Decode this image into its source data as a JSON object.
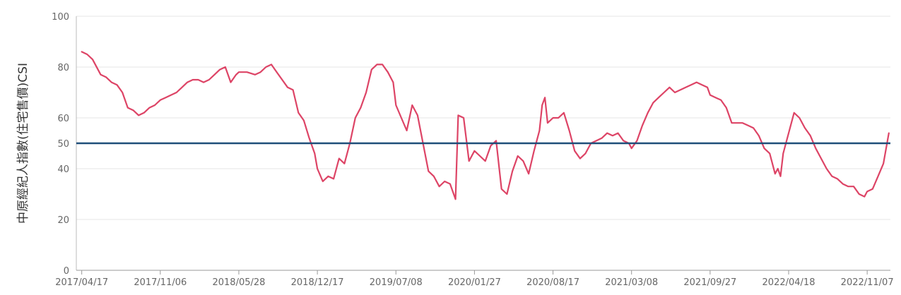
{
  "chart_data": {
    "type": "line",
    "ylabel": "中原經紀人指數(住宅售價)CSI",
    "xlabel": "",
    "ylim": [
      0,
      100
    ],
    "yticks": [
      0,
      20,
      40,
      50,
      60,
      80,
      100
    ],
    "xticks": [
      "2017/04/17",
      "2017/11/06",
      "2018/05/28",
      "2018/12/17",
      "2019/07/08",
      "2020/01/27",
      "2020/08/17",
      "2021/03/08",
      "2021/09/27",
      "2022/04/18",
      "2022/11/07"
    ],
    "reference_line": {
      "value": 50,
      "color": "#1f4e79"
    },
    "grid": true,
    "series": [
      {
        "color": "#dd4466",
        "points": [
          [
            "2017/04/17",
            86
          ],
          [
            "2017/05/01",
            85
          ],
          [
            "2017/05/15",
            83
          ],
          [
            "2017/06/05",
            77
          ],
          [
            "2017/06/19",
            76
          ],
          [
            "2017/07/03",
            74
          ],
          [
            "2017/07/17",
            73
          ],
          [
            "2017/07/31",
            70
          ],
          [
            "2017/08/14",
            64
          ],
          [
            "2017/08/28",
            63
          ],
          [
            "2017/09/11",
            61
          ],
          [
            "2017/09/25",
            62
          ],
          [
            "2017/10/09",
            64
          ],
          [
            "2017/10/23",
            65
          ],
          [
            "2017/11/06",
            67
          ],
          [
            "2017/11/20",
            68
          ],
          [
            "2017/12/04",
            69
          ],
          [
            "2017/12/18",
            70
          ],
          [
            "2018/01/01",
            72
          ],
          [
            "2018/01/15",
            74
          ],
          [
            "2018/01/29",
            75
          ],
          [
            "2018/02/12",
            75
          ],
          [
            "2018/02/26",
            74
          ],
          [
            "2018/03/12",
            75
          ],
          [
            "2018/03/26",
            77
          ],
          [
            "2018/04/09",
            79
          ],
          [
            "2018/04/23",
            80
          ],
          [
            "2018/05/07",
            74
          ],
          [
            "2018/05/21",
            77
          ],
          [
            "2018/05/28",
            78
          ],
          [
            "2018/06/18",
            78
          ],
          [
            "2018/07/09",
            77
          ],
          [
            "2018/07/23",
            78
          ],
          [
            "2018/08/06",
            80
          ],
          [
            "2018/08/20",
            81
          ],
          [
            "2018/09/03",
            78
          ],
          [
            "2018/09/17",
            75
          ],
          [
            "2018/10/01",
            72
          ],
          [
            "2018/10/15",
            71
          ],
          [
            "2018/10/29",
            62
          ],
          [
            "2018/11/12",
            59
          ],
          [
            "2018/11/26",
            52
          ],
          [
            "2018/12/10",
            46
          ],
          [
            "2018/12/17",
            40
          ],
          [
            "2018/12/31",
            35
          ],
          [
            "2019/01/14",
            37
          ],
          [
            "2019/01/28",
            36
          ],
          [
            "2019/02/11",
            44
          ],
          [
            "2019/02/25",
            42
          ],
          [
            "2019/03/11",
            50
          ],
          [
            "2019/03/25",
            60
          ],
          [
            "2019/04/08",
            64
          ],
          [
            "2019/04/22",
            70
          ],
          [
            "2019/05/06",
            79
          ],
          [
            "2019/05/20",
            81
          ],
          [
            "2019/06/03",
            81
          ],
          [
            "2019/06/17",
            78
          ],
          [
            "2019/07/01",
            74
          ],
          [
            "2019/07/08",
            65
          ],
          [
            "2019/07/22",
            60
          ],
          [
            "2019/08/05",
            55
          ],
          [
            "2019/08/19",
            65
          ],
          [
            "2019/09/02",
            61
          ],
          [
            "2019/09/16",
            50
          ],
          [
            "2019/09/30",
            39
          ],
          [
            "2019/10/14",
            37
          ],
          [
            "2019/10/28",
            33
          ],
          [
            "2019/11/11",
            35
          ],
          [
            "2019/11/25",
            34
          ],
          [
            "2019/12/09",
            28
          ],
          [
            "2019/12/16",
            61
          ],
          [
            "2019/12/30",
            60
          ],
          [
            "2020/01/13",
            43
          ],
          [
            "2020/01/27",
            47
          ],
          [
            "2020/02/10",
            45
          ],
          [
            "2020/02/24",
            43
          ],
          [
            "2020/03/09",
            49
          ],
          [
            "2020/03/23",
            51
          ],
          [
            "2020/04/06",
            32
          ],
          [
            "2020/04/20",
            30
          ],
          [
            "2020/05/04",
            39
          ],
          [
            "2020/05/18",
            45
          ],
          [
            "2020/06/01",
            43
          ],
          [
            "2020/06/15",
            38
          ],
          [
            "2020/06/29",
            47
          ],
          [
            "2020/07/13",
            55
          ],
          [
            "2020/07/20",
            65
          ],
          [
            "2020/07/27",
            68
          ],
          [
            "2020/08/03",
            58
          ],
          [
            "2020/08/17",
            60
          ],
          [
            "2020/08/31",
            60
          ],
          [
            "2020/09/14",
            62
          ],
          [
            "2020/09/28",
            55
          ],
          [
            "2020/10/12",
            47
          ],
          [
            "2020/10/26",
            44
          ],
          [
            "2020/11/09",
            46
          ],
          [
            "2020/11/23",
            50
          ],
          [
            "2020/12/07",
            51
          ],
          [
            "2020/12/21",
            52
          ],
          [
            "2021/01/04",
            54
          ],
          [
            "2021/01/18",
            53
          ],
          [
            "2021/02/01",
            54
          ],
          [
            "2021/02/15",
            51
          ],
          [
            "2021/03/01",
            50
          ],
          [
            "2021/03/08",
            48
          ],
          [
            "2021/03/22",
            51
          ],
          [
            "2021/04/05",
            57
          ],
          [
            "2021/04/19",
            62
          ],
          [
            "2021/05/03",
            66
          ],
          [
            "2021/05/17",
            68
          ],
          [
            "2021/05/31",
            70
          ],
          [
            "2021/06/14",
            72
          ],
          [
            "2021/06/28",
            70
          ],
          [
            "2021/07/12",
            71
          ],
          [
            "2021/07/26",
            72
          ],
          [
            "2021/08/09",
            73
          ],
          [
            "2021/08/23",
            74
          ],
          [
            "2021/09/06",
            73
          ],
          [
            "2021/09/20",
            72
          ],
          [
            "2021/09/27",
            69
          ],
          [
            "2021/10/11",
            68
          ],
          [
            "2021/10/25",
            67
          ],
          [
            "2021/11/08",
            64
          ],
          [
            "2021/11/22",
            58
          ],
          [
            "2021/12/06",
            58
          ],
          [
            "2021/12/20",
            58
          ],
          [
            "2022/01/03",
            57
          ],
          [
            "2022/01/17",
            56
          ],
          [
            "2022/01/31",
            53
          ],
          [
            "2022/02/14",
            48
          ],
          [
            "2022/02/28",
            46
          ],
          [
            "2022/03/14",
            38
          ],
          [
            "2022/03/21",
            40
          ],
          [
            "2022/03/28",
            37
          ],
          [
            "2022/04/04",
            46
          ],
          [
            "2022/04/18",
            54
          ],
          [
            "2022/05/02",
            62
          ],
          [
            "2022/05/16",
            60
          ],
          [
            "2022/05/30",
            56
          ],
          [
            "2022/06/13",
            53
          ],
          [
            "2022/06/27",
            48
          ],
          [
            "2022/07/11",
            44
          ],
          [
            "2022/07/25",
            40
          ],
          [
            "2022/08/08",
            37
          ],
          [
            "2022/08/22",
            36
          ],
          [
            "2022/09/05",
            34
          ],
          [
            "2022/09/19",
            33
          ],
          [
            "2022/10/03",
            33
          ],
          [
            "2022/10/17",
            30
          ],
          [
            "2022/10/31",
            29
          ],
          [
            "2022/11/07",
            31
          ],
          [
            "2022/11/21",
            32
          ],
          [
            "2022/12/05",
            37
          ],
          [
            "2022/12/19",
            42
          ],
          [
            "2023/01/02",
            54
          ]
        ]
      }
    ]
  }
}
